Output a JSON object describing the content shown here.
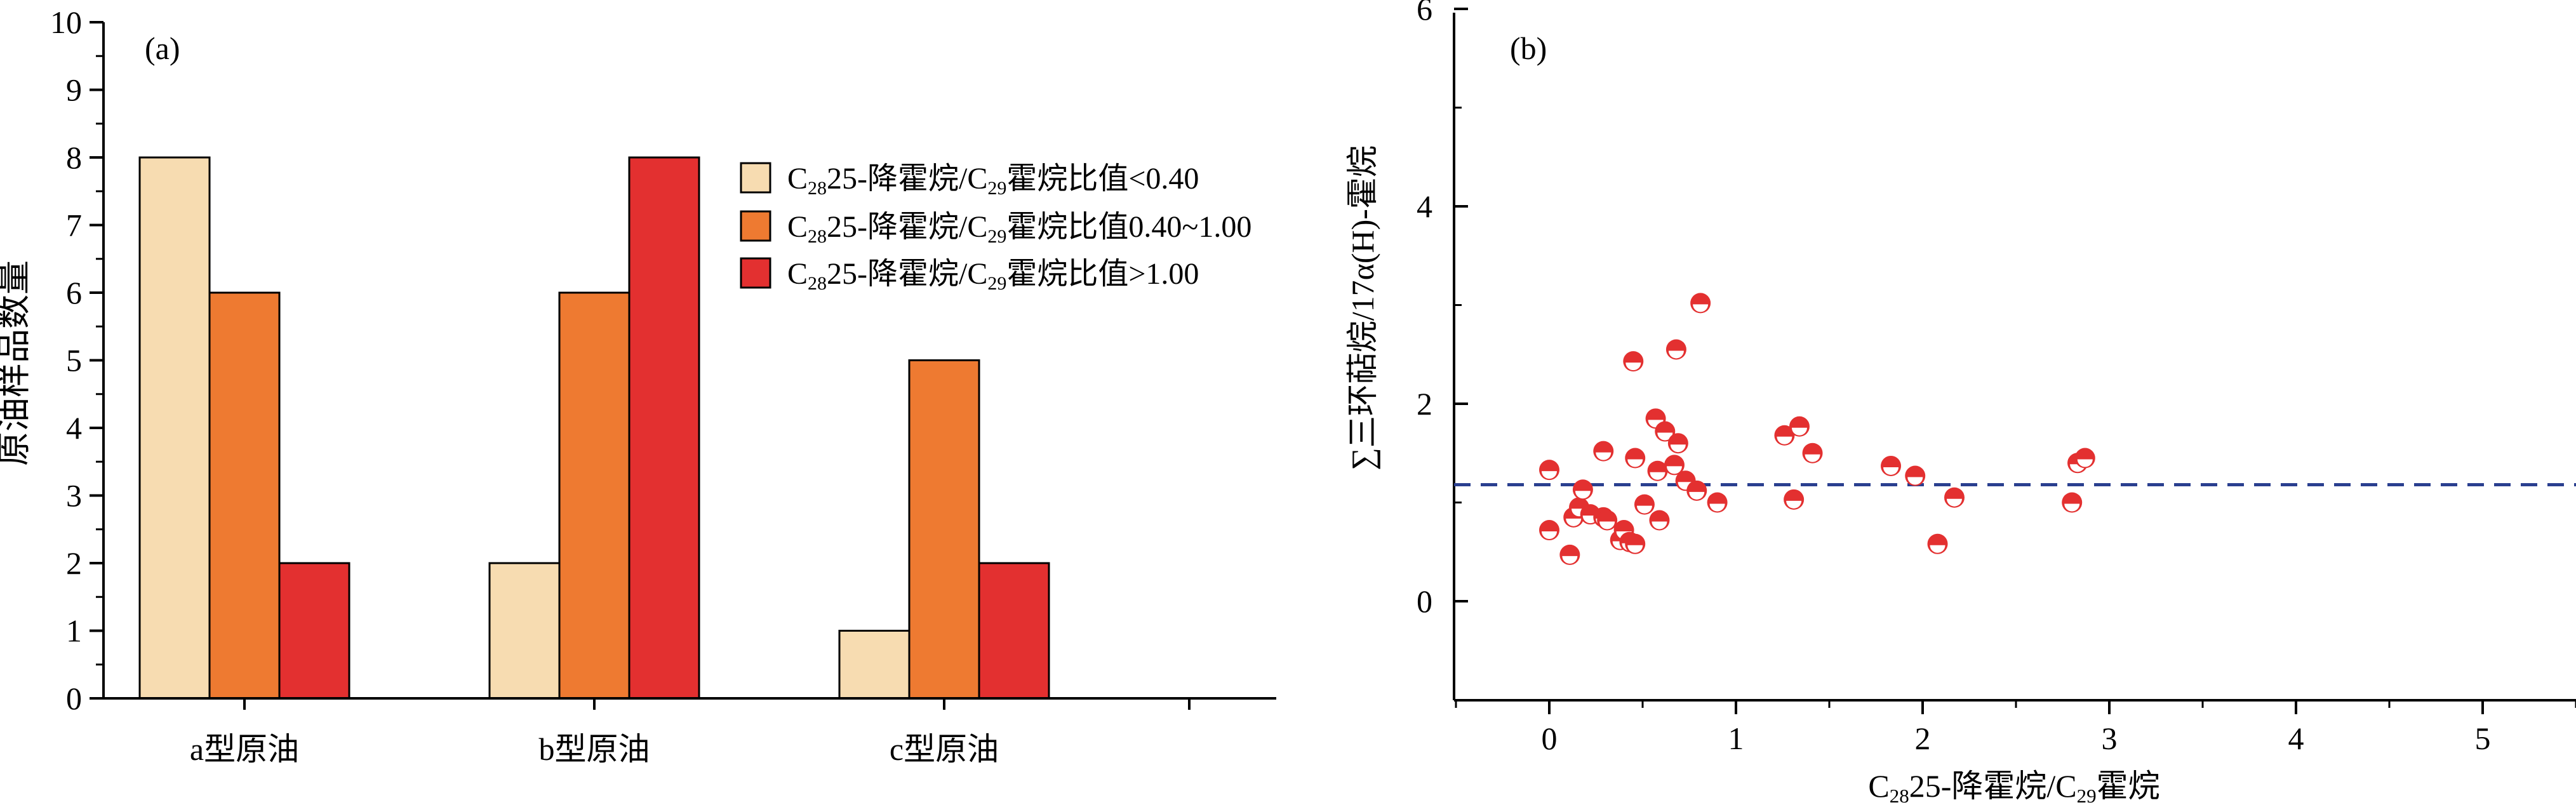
{
  "chart_data": [
    {
      "type": "bar",
      "panel_label": "(a)",
      "title": "",
      "xlabel": "",
      "ylabel": "原油样品数量",
      "categories": [
        "a型原油",
        "b型原油",
        "c型原油"
      ],
      "ylim": [
        0,
        10
      ],
      "yticks": [
        "0",
        "1",
        "2",
        "3",
        "4",
        "5",
        "6",
        "7",
        "8",
        "9",
        "10"
      ],
      "legend_position": "upper-right",
      "series": [
        {
          "name_parts": {
            "c1": "C",
            "s1": "28",
            "mid": "25-降霍烷/C",
            "s2": "29",
            "end": "霍烷比值<0.40"
          },
          "color": "#f7dcb1",
          "values": [
            8,
            2,
            1
          ]
        },
        {
          "name_parts": {
            "c1": "C",
            "s1": "28",
            "mid": "25-降霍烷/C",
            "s2": "29",
            "end": "霍烷比值0.40~1.00"
          },
          "color": "#ee7a31",
          "values": [
            6,
            6,
            5
          ]
        },
        {
          "name_parts": {
            "c1": "C",
            "s1": "28",
            "mid": "25-降霍烷/C",
            "s2": "29",
            "end": "霍烷比值>1.00"
          },
          "color": "#e33030",
          "values": [
            2,
            8,
            2
          ]
        }
      ]
    },
    {
      "type": "scatter",
      "panel_label": "(b)",
      "title": "",
      "xlabel_parts": {
        "c1": "C",
        "s1": "28",
        "mid": "25-降霍烷/C",
        "s2": "29",
        "end": "霍烷"
      },
      "ylabel": "∑三环萜烷/17α(H)-霍烷",
      "xlim": [
        -0.5,
        5.5
      ],
      "ylim": [
        -1,
        6
      ],
      "xticks": [
        "0",
        "1",
        "2",
        "3",
        "4",
        "5"
      ],
      "yticks": [
        "0",
        "2",
        "4",
        "6"
      ],
      "reference_line_y": 1.18,
      "marker_color": "#e33030",
      "line_color": "#2a3f8f",
      "points": [
        [
          0.0,
          1.33
        ],
        [
          0.0,
          0.72
        ],
        [
          0.11,
          0.47
        ],
        [
          0.13,
          0.85
        ],
        [
          0.16,
          0.95
        ],
        [
          0.18,
          1.13
        ],
        [
          0.22,
          0.88
        ],
        [
          0.29,
          1.52
        ],
        [
          0.29,
          0.85
        ],
        [
          0.31,
          0.82
        ],
        [
          0.38,
          0.62
        ],
        [
          0.4,
          0.72
        ],
        [
          0.43,
          0.6
        ],
        [
          0.45,
          2.43
        ],
        [
          0.46,
          1.45
        ],
        [
          0.46,
          0.58
        ],
        [
          0.51,
          0.98
        ],
        [
          0.57,
          1.85
        ],
        [
          0.58,
          1.32
        ],
        [
          0.59,
          0.82
        ],
        [
          0.62,
          1.72
        ],
        [
          0.67,
          1.38
        ],
        [
          0.68,
          2.55
        ],
        [
          0.69,
          1.6
        ],
        [
          0.73,
          1.22
        ],
        [
          0.79,
          1.12
        ],
        [
          0.81,
          3.02
        ],
        [
          0.9,
          1.0
        ],
        [
          1.26,
          1.68
        ],
        [
          1.31,
          1.03
        ],
        [
          1.34,
          1.77
        ],
        [
          1.41,
          1.5
        ],
        [
          1.83,
          1.37
        ],
        [
          1.96,
          1.27
        ],
        [
          2.08,
          0.58
        ],
        [
          2.17,
          1.05
        ],
        [
          2.8,
          1.0
        ],
        [
          2.83,
          1.4
        ],
        [
          2.87,
          1.45
        ]
      ]
    }
  ]
}
